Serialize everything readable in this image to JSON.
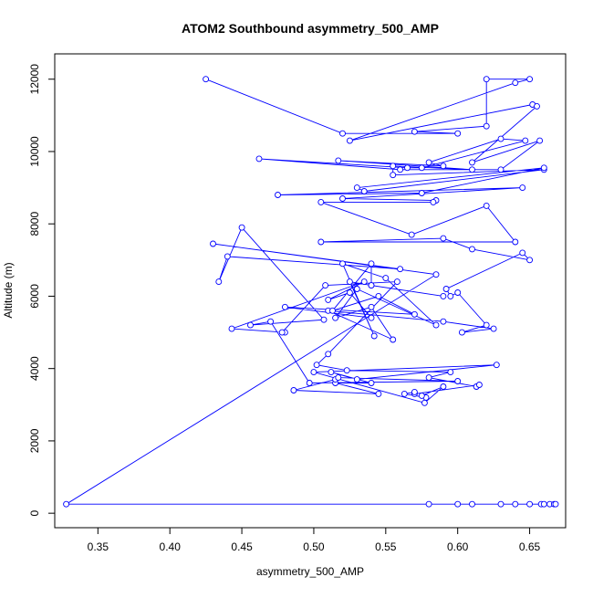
{
  "chart_data": {
    "type": "line",
    "title": "ATOM2 Southbound asymmetry_500_AMP",
    "xlabel": "asymmetry_500_AMP",
    "ylabel": "Altitude (m)",
    "xlim": [
      0.32,
      0.675
    ],
    "ylim": [
      -400,
      12700
    ],
    "x_ticks": [
      0.35,
      0.4,
      0.45,
      0.5,
      0.55,
      0.6,
      0.65
    ],
    "x_tick_labels": [
      "0.35",
      "0.40",
      "0.45",
      "0.50",
      "0.55",
      "0.60",
      "0.65"
    ],
    "y_ticks": [
      0,
      2000,
      4000,
      6000,
      8000,
      10000,
      12000
    ],
    "y_tick_labels": [
      "0",
      "2000",
      "4000",
      "6000",
      "8000",
      "10000",
      "12000"
    ],
    "color": "#0000ff",
    "grid": false,
    "series": [
      {
        "x": [
          0.425,
          0.52,
          0.6,
          0.57,
          0.62,
          0.62,
          0.65,
          0.64,
          0.525,
          0.652,
          0.655,
          0.61,
          0.657,
          0.63,
          0.56,
          0.462,
          0.565,
          0.575,
          0.647,
          0.63,
          0.58,
          0.59,
          0.517,
          0.61,
          0.555,
          0.555,
          0.66,
          0.535,
          0.53,
          0.66,
          0.575,
          0.475,
          0.645,
          0.52,
          0.585,
          0.583,
          0.505,
          0.568,
          0.62,
          0.64,
          0.505,
          0.59,
          0.61,
          0.65,
          0.645,
          0.592,
          0.595,
          0.6,
          0.62,
          0.603,
          0.625,
          0.59,
          0.51,
          0.555,
          0.54,
          0.515,
          0.53,
          0.585,
          0.55,
          0.52,
          0.542,
          0.525,
          0.54,
          0.59,
          0.54,
          0.54,
          0.513,
          0.545,
          0.57,
          0.48,
          0.54,
          0.525,
          0.51,
          0.535,
          0.443,
          0.48,
          0.478,
          0.508,
          0.558,
          0.51,
          0.502,
          0.523,
          0.595,
          0.58,
          0.613,
          0.615,
          0.57,
          0.57,
          0.563,
          0.578,
          0.575,
          0.59,
          0.577,
          0.5,
          0.627,
          0.53,
          0.512,
          0.54,
          0.515,
          0.545,
          0.486,
          0.515,
          0.517,
          0.6,
          0.497,
          0.47,
          0.456,
          0.507,
          0.45,
          0.434,
          0.44,
          0.56,
          0.43,
          0.585,
          0.328,
          0.58,
          0.61,
          0.6,
          0.63,
          0.64,
          0.65,
          0.658,
          0.66,
          0.664,
          0.667,
          0.668
        ],
        "y": [
          12000,
          10500,
          10500,
          10550,
          10700,
          12000,
          12000,
          11900,
          10300,
          11300,
          11250,
          9700,
          10300,
          9500,
          9500,
          9800,
          9550,
          9550,
          10300,
          10350,
          9700,
          9600,
          9750,
          9500,
          9600,
          9350,
          9500,
          8900,
          9000,
          9550,
          8850,
          8800,
          9000,
          8700,
          8650,
          8600,
          8600,
          7700,
          8500,
          7500,
          7500,
          7600,
          7300,
          7000,
          7200,
          6200,
          6000,
          6100,
          5200,
          5000,
          5100,
          5300,
          5600,
          4800,
          5700,
          5400,
          6200,
          5200,
          6500,
          6900,
          4900,
          6400,
          6300,
          6000,
          6300,
          6900,
          5600,
          6000,
          5500,
          5700,
          5400,
          6100,
          5900,
          6400,
          5100,
          5000,
          5000,
          6300,
          6400,
          4400,
          4100,
          3950,
          3900,
          3750,
          3500,
          3550,
          3300,
          3350,
          3300,
          3200,
          3250,
          3500,
          3050,
          3900,
          4100,
          3700,
          3900,
          3600,
          3600,
          3300,
          3400,
          3700,
          3750,
          3650,
          3600,
          5300,
          5200,
          5350,
          7900,
          6400,
          7100,
          6750,
          7450,
          6600,
          250,
          250,
          250,
          250,
          250,
          250,
          250,
          250,
          250,
          250,
          250,
          250
        ]
      }
    ]
  }
}
